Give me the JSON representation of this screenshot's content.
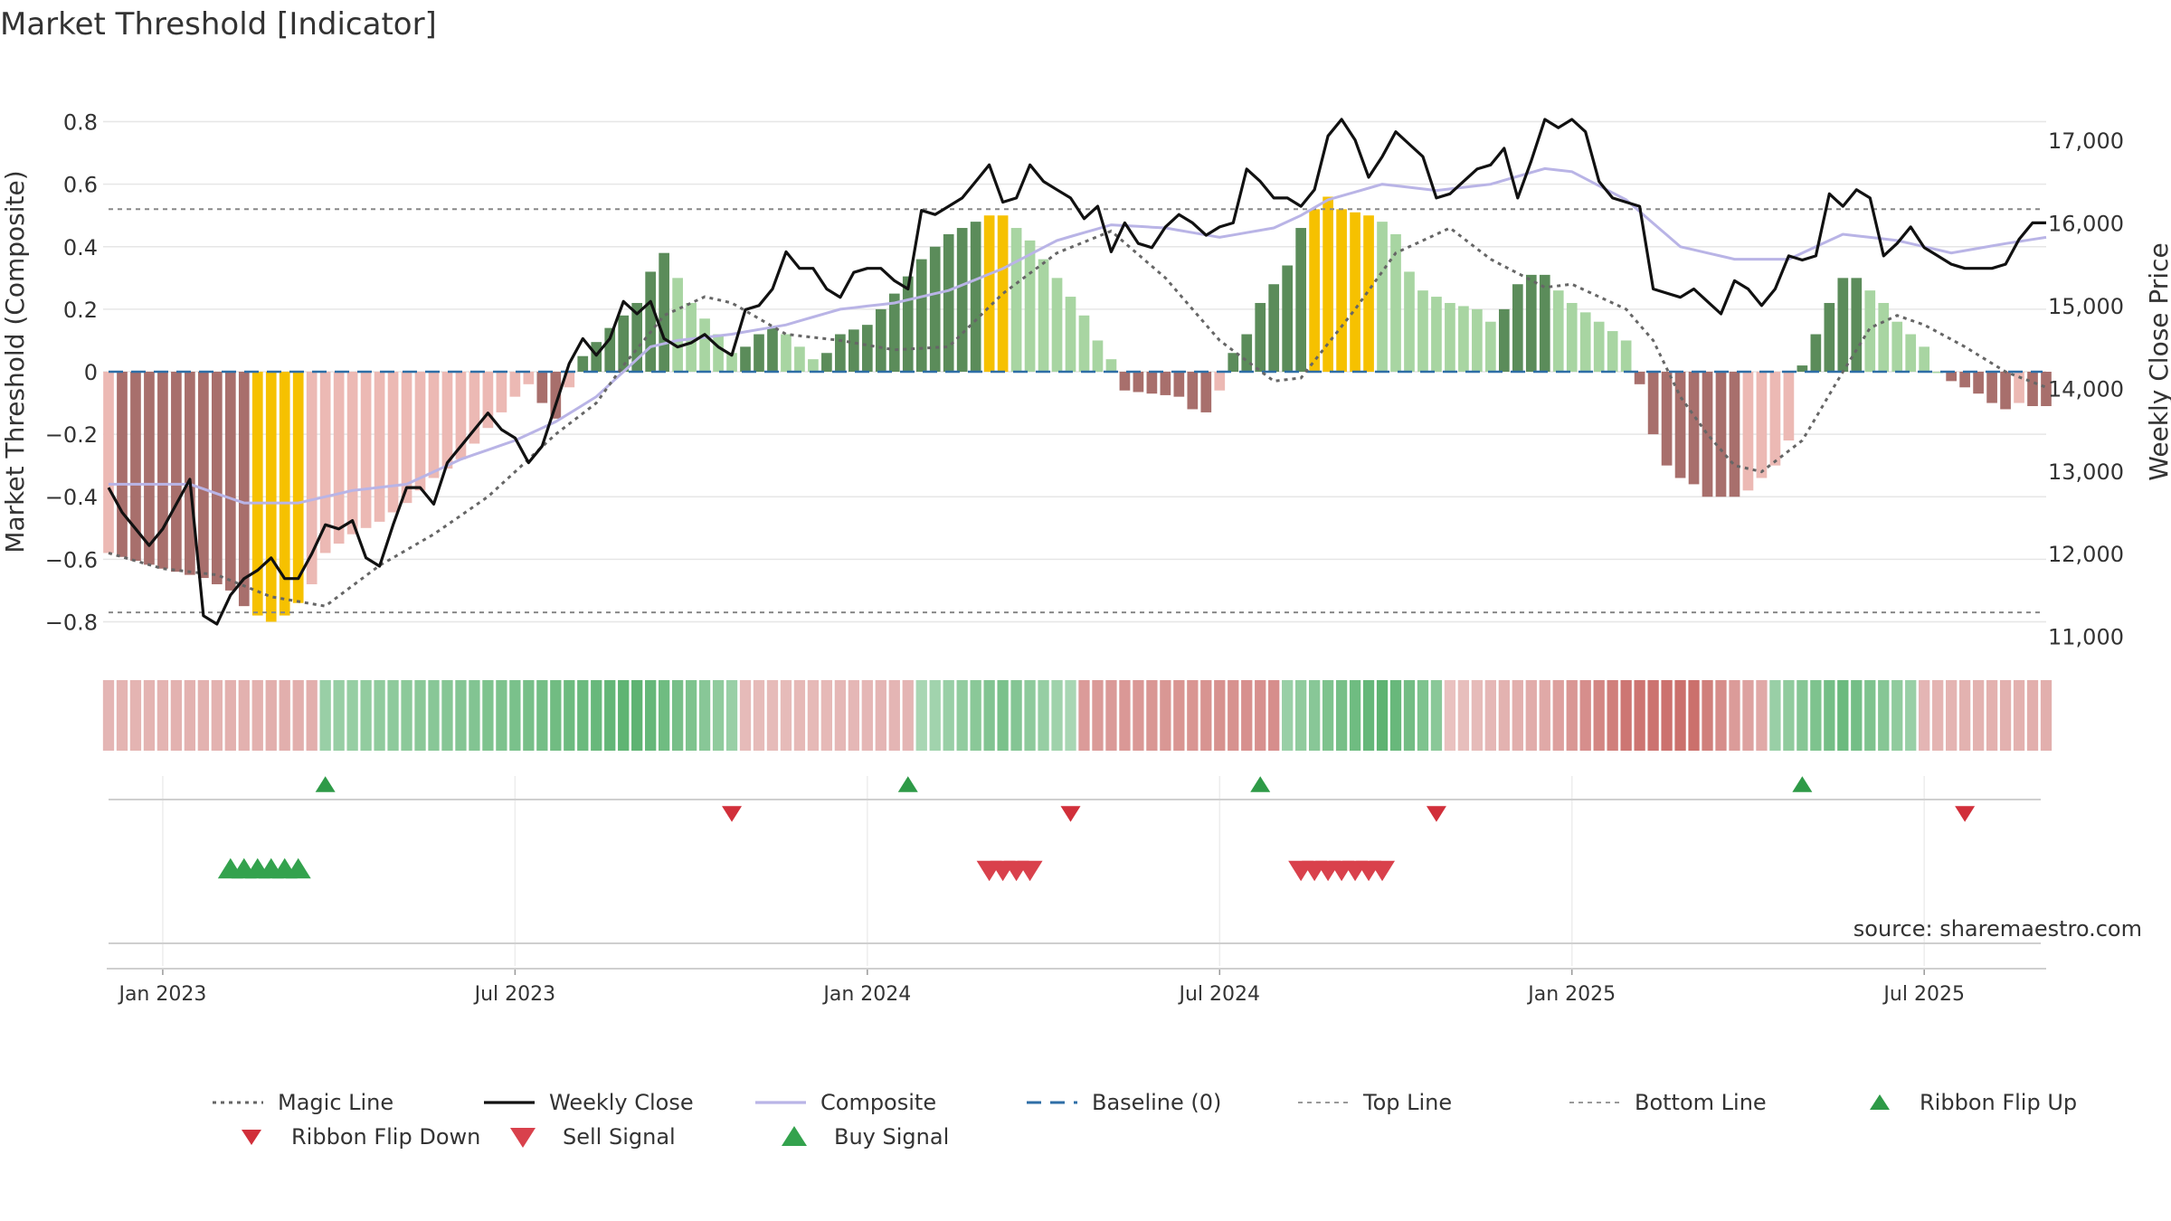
{
  "chart_data": {
    "type": "composite-indicator",
    "title": "Market Threshold [Indicator]",
    "ylabel_left": "Market Threshold (Composite)",
    "ylabel_right": "Weekly Close Price",
    "source": "source: sharemaestro.com",
    "ylim_left": [
      -0.9,
      0.9
    ],
    "ylim_right": [
      10800,
      17600
    ],
    "left_ticks": [
      0.8,
      0.6,
      0.4,
      0.2,
      0,
      -0.2,
      -0.4,
      -0.6,
      -0.8
    ],
    "left_tick_labels": [
      "0.8",
      "0.6",
      "0.4",
      "0.2",
      "0",
      "−0.2",
      "−0.4",
      "−0.6",
      "−0.8"
    ],
    "right_ticks": [
      17000,
      16000,
      15000,
      14000,
      13000,
      12000,
      11000
    ],
    "right_tick_labels": [
      "17,000",
      "16,000",
      "15,000",
      "14,000",
      "13,000",
      "12,000",
      "11,000"
    ],
    "x_ticks": [
      4,
      30,
      56,
      82,
      108,
      134
    ],
    "x_tick_labels": [
      "Jan 2023",
      "Jul 2023",
      "Jan 2024",
      "Jul 2024",
      "Jan 2025",
      "Jul 2025"
    ],
    "week_count": 144,
    "top_line": 0.52,
    "bottom_line": -0.77,
    "composite_anchors": [
      [
        0,
        -0.36
      ],
      [
        6,
        -0.36
      ],
      [
        10,
        -0.42
      ],
      [
        14,
        -0.42
      ],
      [
        18,
        -0.38
      ],
      [
        22,
        -0.36
      ],
      [
        26,
        -0.28
      ],
      [
        30,
        -0.22
      ],
      [
        33,
        -0.16
      ],
      [
        36,
        -0.08
      ],
      [
        38,
        0
      ],
      [
        40,
        0.08
      ],
      [
        42,
        0.1
      ],
      [
        46,
        0.12
      ],
      [
        50,
        0.15
      ],
      [
        54,
        0.2
      ],
      [
        58,
        0.22
      ],
      [
        62,
        0.26
      ],
      [
        66,
        0.33
      ],
      [
        70,
        0.42
      ],
      [
        74,
        0.47
      ],
      [
        78,
        0.46
      ],
      [
        82,
        0.43
      ],
      [
        86,
        0.46
      ],
      [
        88,
        0.5
      ],
      [
        90,
        0.55
      ],
      [
        94,
        0.6
      ],
      [
        98,
        0.58
      ],
      [
        102,
        0.6
      ],
      [
        106,
        0.65
      ],
      [
        108,
        0.64
      ],
      [
        112,
        0.55
      ],
      [
        116,
        0.4
      ],
      [
        120,
        0.36
      ],
      [
        124,
        0.36
      ],
      [
        128,
        0.44
      ],
      [
        132,
        0.42
      ],
      [
        136,
        0.38
      ],
      [
        140,
        0.41
      ],
      [
        143,
        0.43
      ]
    ],
    "magic_anchors": [
      [
        0,
        -0.58
      ],
      [
        4,
        -0.63
      ],
      [
        8,
        -0.65
      ],
      [
        12,
        -0.72
      ],
      [
        16,
        -0.75
      ],
      [
        20,
        -0.62
      ],
      [
        24,
        -0.52
      ],
      [
        28,
        -0.4
      ],
      [
        30,
        -0.32
      ],
      [
        33,
        -0.2
      ],
      [
        36,
        -0.1
      ],
      [
        38,
        0.02
      ],
      [
        41,
        0.18
      ],
      [
        44,
        0.24
      ],
      [
        46,
        0.22
      ],
      [
        50,
        0.12
      ],
      [
        54,
        0.1
      ],
      [
        58,
        0.07
      ],
      [
        62,
        0.08
      ],
      [
        66,
        0.25
      ],
      [
        70,
        0.38
      ],
      [
        74,
        0.45
      ],
      [
        78,
        0.3
      ],
      [
        82,
        0.1
      ],
      [
        86,
        -0.03
      ],
      [
        88,
        -0.02
      ],
      [
        92,
        0.2
      ],
      [
        95,
        0.38
      ],
      [
        99,
        0.46
      ],
      [
        102,
        0.36
      ],
      [
        106,
        0.27
      ],
      [
        108,
        0.28
      ],
      [
        112,
        0.2
      ],
      [
        114,
        0.1
      ],
      [
        116,
        -0.08
      ],
      [
        118,
        -0.2
      ],
      [
        120,
        -0.3
      ],
      [
        122,
        -0.32
      ],
      [
        125,
        -0.22
      ],
      [
        128,
        0.0
      ],
      [
        130,
        0.14
      ],
      [
        132,
        0.18
      ],
      [
        134,
        0.15
      ],
      [
        137,
        0.08
      ],
      [
        140,
        0.0
      ],
      [
        143,
        -0.05
      ]
    ],
    "close_points": [
      [
        0,
        12800
      ],
      [
        1,
        12500
      ],
      [
        2,
        12300
      ],
      [
        3,
        12100
      ],
      [
        4,
        12300
      ],
      [
        5,
        12600
      ],
      [
        6,
        12900
      ],
      [
        7,
        11250
      ],
      [
        8,
        11150
      ],
      [
        9,
        11500
      ],
      [
        10,
        11700
      ],
      [
        11,
        11800
      ],
      [
        12,
        11950
      ],
      [
        13,
        11700
      ],
      [
        14,
        11700
      ],
      [
        15,
        12000
      ],
      [
        16,
        12350
      ],
      [
        17,
        12300
      ],
      [
        18,
        12400
      ],
      [
        19,
        11950
      ],
      [
        20,
        11850
      ],
      [
        21,
        12350
      ],
      [
        22,
        12800
      ],
      [
        23,
        12800
      ],
      [
        24,
        12600
      ],
      [
        25,
        13100
      ],
      [
        26,
        13300
      ],
      [
        27,
        13500
      ],
      [
        28,
        13700
      ],
      [
        29,
        13500
      ],
      [
        30,
        13400
      ],
      [
        31,
        13100
      ],
      [
        32,
        13300
      ],
      [
        33,
        13800
      ],
      [
        34,
        14300
      ],
      [
        35,
        14600
      ],
      [
        36,
        14400
      ],
      [
        37,
        14600
      ],
      [
        38,
        15050
      ],
      [
        39,
        14900
      ],
      [
        40,
        15050
      ],
      [
        41,
        14600
      ],
      [
        42,
        14500
      ],
      [
        43,
        14550
      ],
      [
        44,
        14650
      ],
      [
        45,
        14500
      ],
      [
        46,
        14400
      ],
      [
        47,
        14950
      ],
      [
        48,
        15000
      ],
      [
        49,
        15200
      ],
      [
        50,
        15650
      ],
      [
        51,
        15450
      ],
      [
        52,
        15450
      ],
      [
        53,
        15200
      ],
      [
        54,
        15100
      ],
      [
        55,
        15400
      ],
      [
        56,
        15450
      ],
      [
        57,
        15450
      ],
      [
        58,
        15300
      ],
      [
        59,
        15200
      ],
      [
        60,
        16150
      ],
      [
        61,
        16100
      ],
      [
        62,
        16200
      ],
      [
        63,
        16300
      ],
      [
        64,
        16500
      ],
      [
        65,
        16700
      ],
      [
        66,
        16250
      ],
      [
        67,
        16300
      ],
      [
        68,
        16700
      ],
      [
        69,
        16500
      ],
      [
        70,
        16400
      ],
      [
        71,
        16300
      ],
      [
        72,
        16050
      ],
      [
        73,
        16200
      ],
      [
        74,
        15650
      ],
      [
        75,
        16000
      ],
      [
        76,
        15750
      ],
      [
        77,
        15700
      ],
      [
        78,
        15950
      ],
      [
        79,
        16100
      ],
      [
        80,
        16000
      ],
      [
        81,
        15850
      ],
      [
        82,
        15950
      ],
      [
        83,
        16000
      ],
      [
        84,
        16650
      ],
      [
        85,
        16500
      ],
      [
        86,
        16300
      ],
      [
        87,
        16300
      ],
      [
        88,
        16200
      ],
      [
        89,
        16400
      ],
      [
        90,
        17050
      ],
      [
        91,
        17250
      ],
      [
        92,
        17000
      ],
      [
        93,
        16550
      ],
      [
        94,
        16800
      ],
      [
        95,
        17100
      ],
      [
        96,
        16950
      ],
      [
        97,
        16800
      ],
      [
        98,
        16300
      ],
      [
        99,
        16350
      ],
      [
        100,
        16500
      ],
      [
        101,
        16650
      ],
      [
        102,
        16700
      ],
      [
        103,
        16900
      ],
      [
        104,
        16300
      ],
      [
        105,
        16750
      ],
      [
        106,
        17250
      ],
      [
        107,
        17150
      ],
      [
        108,
        17250
      ],
      [
        109,
        17100
      ],
      [
        110,
        16500
      ],
      [
        111,
        16300
      ],
      [
        112,
        16250
      ],
      [
        113,
        16200
      ],
      [
        114,
        15200
      ],
      [
        115,
        15150
      ],
      [
        116,
        15100
      ],
      [
        117,
        15200
      ],
      [
        118,
        15050
      ],
      [
        119,
        14900
      ],
      [
        120,
        15300
      ],
      [
        121,
        15200
      ],
      [
        122,
        15000
      ],
      [
        123,
        15200
      ],
      [
        124,
        15600
      ],
      [
        125,
        15550
      ],
      [
        126,
        15600
      ],
      [
        127,
        16350
      ],
      [
        128,
        16200
      ],
      [
        129,
        16400
      ],
      [
        130,
        16300
      ],
      [
        131,
        15600
      ],
      [
        132,
        15750
      ],
      [
        133,
        15950
      ],
      [
        134,
        15700
      ],
      [
        135,
        15600
      ],
      [
        136,
        15500
      ],
      [
        137,
        15450
      ],
      [
        138,
        15450
      ],
      [
        139,
        15450
      ],
      [
        140,
        15500
      ],
      [
        141,
        15800
      ],
      [
        142,
        16000
      ],
      [
        143,
        16000
      ]
    ],
    "histogram_anchors": [
      [
        0,
        -0.58
      ],
      [
        4,
        -0.63
      ],
      [
        7,
        -0.66
      ],
      [
        9,
        -0.7
      ],
      [
        10,
        -0.75
      ],
      [
        11,
        -0.78
      ],
      [
        12,
        -0.8
      ],
      [
        13,
        -0.78
      ],
      [
        14,
        -0.74
      ],
      [
        15,
        -0.68
      ],
      [
        16,
        -0.58
      ],
      [
        18,
        -0.52
      ],
      [
        20,
        -0.48
      ],
      [
        22,
        -0.42
      ],
      [
        24,
        -0.34
      ],
      [
        26,
        -0.28
      ],
      [
        28,
        -0.18
      ],
      [
        30,
        -0.08
      ],
      [
        31,
        -0.04
      ],
      [
        32,
        -0.1
      ],
      [
        33,
        -0.15
      ],
      [
        34,
        -0.05
      ],
      [
        35,
        0.05
      ],
      [
        37,
        0.14
      ],
      [
        39,
        0.22
      ],
      [
        40,
        0.32
      ],
      [
        41,
        0.38
      ],
      [
        42,
        0.3
      ],
      [
        43,
        0.22
      ],
      [
        45,
        0.12
      ],
      [
        46,
        0.06
      ],
      [
        47,
        0.08
      ],
      [
        48,
        0.12
      ],
      [
        49,
        0.14
      ],
      [
        50,
        0.12
      ],
      [
        51,
        0.08
      ],
      [
        52,
        0.04
      ],
      [
        53,
        0.06
      ],
      [
        54,
        0.12
      ],
      [
        56,
        0.15
      ],
      [
        58,
        0.25
      ],
      [
        60,
        0.36
      ],
      [
        62,
        0.44
      ],
      [
        64,
        0.48
      ],
      [
        65,
        0.5
      ],
      [
        66,
        0.5
      ],
      [
        68,
        0.42
      ],
      [
        70,
        0.3
      ],
      [
        72,
        0.18
      ],
      [
        73,
        0.1
      ],
      [
        74,
        0.04
      ],
      [
        75,
        -0.06
      ],
      [
        77,
        -0.07
      ],
      [
        79,
        -0.08
      ],
      [
        80,
        -0.12
      ],
      [
        81,
        -0.13
      ],
      [
        82,
        -0.06
      ],
      [
        83,
        0.06
      ],
      [
        84,
        0.12
      ],
      [
        85,
        0.22
      ],
      [
        87,
        0.34
      ],
      [
        88,
        0.46
      ],
      [
        89,
        0.52
      ],
      [
        90,
        0.56
      ],
      [
        91,
        0.52
      ],
      [
        93,
        0.5
      ],
      [
        94,
        0.48
      ],
      [
        95,
        0.44
      ],
      [
        96,
        0.32
      ],
      [
        97,
        0.26
      ],
      [
        99,
        0.22
      ],
      [
        101,
        0.2
      ],
      [
        102,
        0.16
      ],
      [
        103,
        0.2
      ],
      [
        104,
        0.28
      ],
      [
        105,
        0.31
      ],
      [
        106,
        0.31
      ],
      [
        107,
        0.26
      ],
      [
        108,
        0.22
      ],
      [
        110,
        0.16
      ],
      [
        112,
        0.1
      ],
      [
        113,
        -0.04
      ],
      [
        114,
        -0.2
      ],
      [
        115,
        -0.3
      ],
      [
        116,
        -0.34
      ],
      [
        117,
        -0.36
      ],
      [
        118,
        -0.4
      ],
      [
        119,
        -0.4
      ],
      [
        120,
        -0.4
      ],
      [
        121,
        -0.38
      ],
      [
        122,
        -0.34
      ],
      [
        123,
        -0.3
      ],
      [
        124,
        -0.22
      ],
      [
        125,
        0.02
      ],
      [
        126,
        0.12
      ],
      [
        127,
        0.22
      ],
      [
        128,
        0.3
      ],
      [
        129,
        0.3
      ],
      [
        130,
        0.26
      ],
      [
        131,
        0.22
      ],
      [
        132,
        0.16
      ],
      [
        133,
        0.12
      ],
      [
        134,
        0.08
      ],
      [
        135,
        0.0
      ],
      [
        136,
        -0.03
      ],
      [
        137,
        -0.05
      ],
      [
        138,
        -0.07
      ],
      [
        139,
        -0.1
      ],
      [
        140,
        -0.12
      ],
      [
        141,
        -0.1
      ],
      [
        142,
        -0.11
      ],
      [
        143,
        -0.11
      ]
    ],
    "ribbon_anchors": [
      [
        0,
        -0.3
      ],
      [
        15,
        -0.35
      ],
      [
        16,
        0.4
      ],
      [
        30,
        0.6
      ],
      [
        39,
        0.8
      ],
      [
        46,
        0.4
      ],
      [
        47,
        -0.25
      ],
      [
        59,
        -0.3
      ],
      [
        60,
        0.3
      ],
      [
        66,
        0.6
      ],
      [
        71,
        0.3
      ],
      [
        72,
        -0.5
      ],
      [
        86,
        -0.6
      ],
      [
        87,
        0.4
      ],
      [
        94,
        0.8
      ],
      [
        98,
        0.5
      ],
      [
        99,
        -0.2
      ],
      [
        106,
        -0.4
      ],
      [
        112,
        -0.8
      ],
      [
        117,
        -0.85
      ],
      [
        120,
        -0.5
      ],
      [
        122,
        -0.4
      ],
      [
        123,
        0.4
      ],
      [
        128,
        0.7
      ],
      [
        133,
        0.4
      ],
      [
        134,
        -0.3
      ],
      [
        143,
        -0.35
      ]
    ],
    "ribbon_flip_up": [
      16,
      59,
      85,
      125
    ],
    "ribbon_flip_down": [
      46,
      71,
      98,
      137
    ],
    "buy_signals": [
      9,
      10,
      11,
      12,
      13,
      14
    ],
    "sell_signals": [
      65,
      66,
      67,
      68,
      88,
      89,
      90,
      91,
      92,
      93,
      94
    ],
    "legend": [
      {
        "label": "Magic Line",
        "kind": "dotted",
        "color": "#666666"
      },
      {
        "label": "Weekly Close",
        "kind": "solid",
        "color": "#111111"
      },
      {
        "label": "Composite",
        "kind": "solid",
        "color": "#b9b4e6"
      },
      {
        "label": "Baseline (0)",
        "kind": "dashed",
        "color": "#2e6ea6"
      },
      {
        "label": "Top Line",
        "kind": "dashed-thin",
        "color": "#999999"
      },
      {
        "label": "Bottom Line",
        "kind": "dashed-thin",
        "color": "#999999"
      },
      {
        "label": "Ribbon Flip Up",
        "kind": "tri-up-small",
        "color": "#2e9a47"
      },
      {
        "label": "Ribbon Flip Down",
        "kind": "tri-down-small",
        "color": "#d12f3a"
      },
      {
        "label": "Sell Signal",
        "kind": "tri-down",
        "color": "#d9414c"
      },
      {
        "label": "Buy Signal",
        "kind": "tri-up",
        "color": "#33a24d"
      }
    ],
    "colors": {
      "strong_up": "#5b8c5a",
      "weak_up": "#a8d5a2",
      "strong_down": "#a86f6c",
      "weak_down": "#ecb9b4",
      "extreme": "#f6c100",
      "ribbon_up": "#3fa557",
      "ribbon_down": "#c45c58",
      "grid": "#e6e6e6"
    }
  }
}
